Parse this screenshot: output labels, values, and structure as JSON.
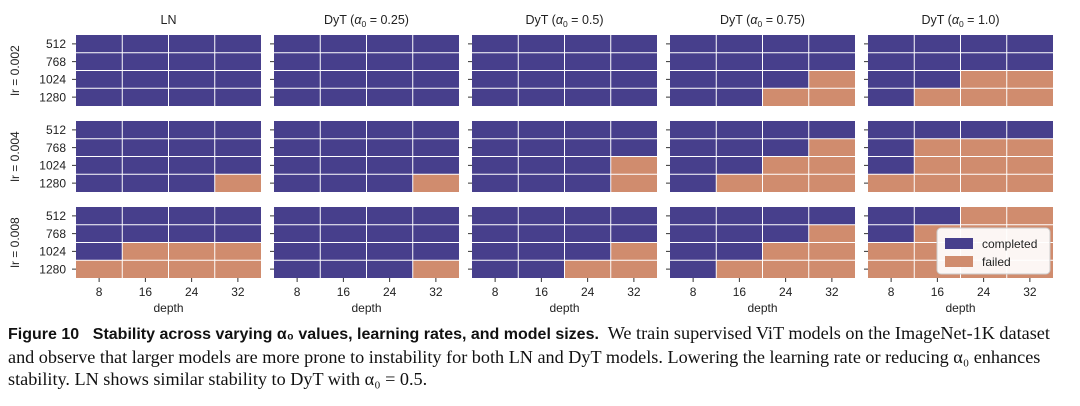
{
  "chart_data": {
    "type": "heatmap",
    "columns": [
      {
        "title_prefix": "LN",
        "title_var": "",
        "title_sub": "",
        "title_value": ""
      },
      {
        "title_prefix": "DyT (",
        "title_var": "α",
        "title_sub": "0",
        "title_value": " = 0.25)"
      },
      {
        "title_prefix": "DyT (",
        "title_var": "α",
        "title_sub": "0",
        "title_value": " = 0.5)"
      },
      {
        "title_prefix": "DyT (",
        "title_var": "α",
        "title_sub": "0",
        "title_value": " = 0.75)"
      },
      {
        "title_prefix": "DyT (",
        "title_var": "α",
        "title_sub": "0",
        "title_value": " = 1.0)"
      }
    ],
    "row_labels": [
      "lr = 0.002",
      "lr = 0.004",
      "lr = 0.008"
    ],
    "x_categories": [
      "8",
      "16",
      "24",
      "32"
    ],
    "y_categories": [
      "512",
      "768",
      "1024",
      "1280"
    ],
    "xlabel": "depth",
    "legend": {
      "position": "bottom-right",
      "items": [
        "completed",
        "failed"
      ]
    },
    "colors": {
      "completed": "#473f8c",
      "failed": "#d08c6e"
    },
    "cell_legend": "0 = completed, 1 = failed",
    "panels": [
      [
        [
          [
            0,
            0,
            0,
            0
          ],
          [
            0,
            0,
            0,
            0
          ],
          [
            0,
            0,
            0,
            0
          ],
          [
            0,
            0,
            0,
            0
          ]
        ],
        [
          [
            0,
            0,
            0,
            0
          ],
          [
            0,
            0,
            0,
            0
          ],
          [
            0,
            0,
            0,
            0
          ],
          [
            0,
            0,
            0,
            0
          ]
        ],
        [
          [
            0,
            0,
            0,
            0
          ],
          [
            0,
            0,
            0,
            0
          ],
          [
            0,
            0,
            0,
            0
          ],
          [
            0,
            0,
            0,
            0
          ]
        ],
        [
          [
            0,
            0,
            0,
            0
          ],
          [
            0,
            0,
            0,
            0
          ],
          [
            0,
            0,
            0,
            1
          ],
          [
            0,
            0,
            1,
            1
          ]
        ],
        [
          [
            0,
            0,
            0,
            0
          ],
          [
            0,
            0,
            0,
            0
          ],
          [
            0,
            0,
            1,
            1
          ],
          [
            0,
            1,
            1,
            1
          ]
        ]
      ],
      [
        [
          [
            0,
            0,
            0,
            0
          ],
          [
            0,
            0,
            0,
            0
          ],
          [
            0,
            0,
            0,
            0
          ],
          [
            0,
            0,
            0,
            1
          ]
        ],
        [
          [
            0,
            0,
            0,
            0
          ],
          [
            0,
            0,
            0,
            0
          ],
          [
            0,
            0,
            0,
            0
          ],
          [
            0,
            0,
            0,
            1
          ]
        ],
        [
          [
            0,
            0,
            0,
            0
          ],
          [
            0,
            0,
            0,
            0
          ],
          [
            0,
            0,
            0,
            1
          ],
          [
            0,
            0,
            0,
            1
          ]
        ],
        [
          [
            0,
            0,
            0,
            0
          ],
          [
            0,
            0,
            0,
            1
          ],
          [
            0,
            0,
            1,
            1
          ],
          [
            0,
            1,
            1,
            1
          ]
        ],
        [
          [
            0,
            0,
            0,
            0
          ],
          [
            0,
            1,
            1,
            1
          ],
          [
            0,
            1,
            1,
            1
          ],
          [
            1,
            1,
            1,
            1
          ]
        ]
      ],
      [
        [
          [
            0,
            0,
            0,
            0
          ],
          [
            0,
            0,
            0,
            0
          ],
          [
            0,
            1,
            1,
            1
          ],
          [
            1,
            1,
            1,
            1
          ]
        ],
        [
          [
            0,
            0,
            0,
            0
          ],
          [
            0,
            0,
            0,
            0
          ],
          [
            0,
            0,
            0,
            0
          ],
          [
            0,
            0,
            0,
            1
          ]
        ],
        [
          [
            0,
            0,
            0,
            0
          ],
          [
            0,
            0,
            0,
            0
          ],
          [
            0,
            0,
            0,
            1
          ],
          [
            0,
            0,
            1,
            1
          ]
        ],
        [
          [
            0,
            0,
            0,
            0
          ],
          [
            0,
            0,
            0,
            1
          ],
          [
            0,
            0,
            1,
            1
          ],
          [
            0,
            1,
            1,
            1
          ]
        ],
        [
          [
            0,
            0,
            1,
            1
          ],
          [
            0,
            1,
            1,
            1
          ],
          [
            1,
            1,
            1,
            1
          ],
          [
            1,
            1,
            1,
            1
          ]
        ]
      ]
    ]
  },
  "caption": {
    "label": "Figure 10",
    "title": "Stability across varying α₀ values, learning rates, and model sizes.",
    "text": "We train supervised ViT models on the ImageNet-1K dataset and observe that larger models are more prone to instability for both LN and DyT models. Lowering the learning rate or reducing α₀ enhances stability. LN shows similar stability to DyT with α₀ = 0.5."
  }
}
